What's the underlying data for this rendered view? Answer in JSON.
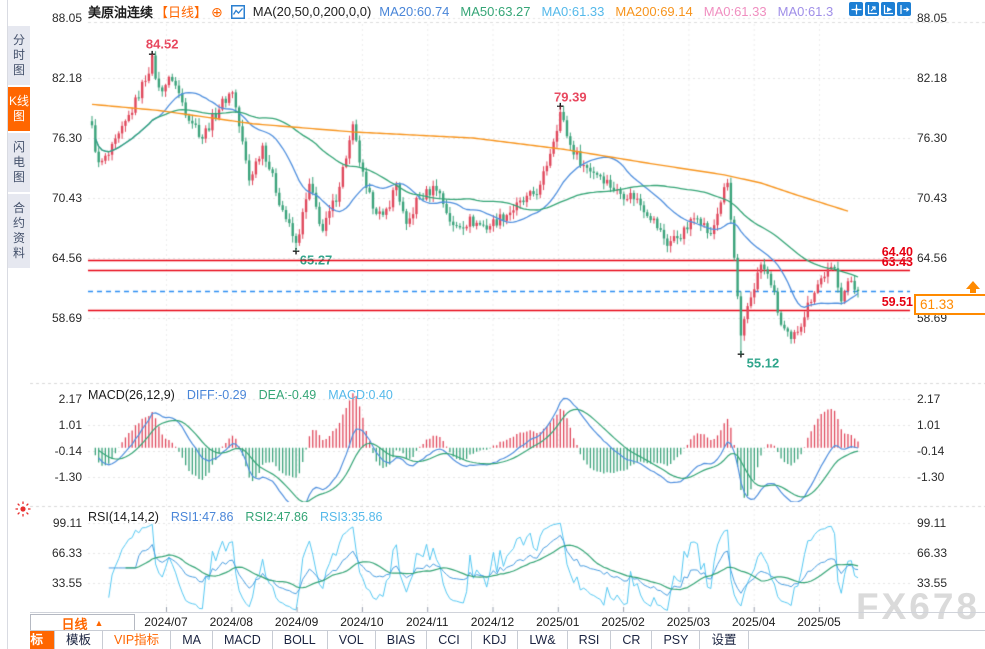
{
  "app": {
    "watermark": "FX678",
    "add_icon_glyph": "⊕",
    "cross_glyph": "+"
  },
  "sidebar": {
    "tabs": [
      {
        "label": "分时图",
        "active": false
      },
      {
        "label": "K线图",
        "active": true
      },
      {
        "label": "闪电图",
        "active": false
      },
      {
        "label": "合约资料",
        "active": false
      }
    ]
  },
  "header": {
    "symbol": "美原油连续",
    "period_tag": "【日线】",
    "ma_params": "MA(20,50,0,200,0,0)",
    "ma_values": [
      {
        "label": "MA20:60.74",
        "color": "#4a86d8"
      },
      {
        "label": "MA50:63.27",
        "color": "#35a576"
      },
      {
        "label": "MA0:61.33",
        "color": "#55b9ea"
      },
      {
        "label": "MA200:69.14",
        "color": "#f7941d"
      },
      {
        "label": "MA0:61.33",
        "color": "#f08fc0"
      },
      {
        "label": "MA0:61.3",
        "color": "#a08fe8"
      }
    ],
    "corner_icons": [
      "crosshair-icon",
      "scale-up-icon",
      "scale-right-icon",
      "page-forward-icon"
    ]
  },
  "chart_data": {
    "type": "candlestick",
    "title": "美原油连续 日线",
    "n_candles": 230,
    "price_keypoints": [
      [
        0,
        77.2
      ],
      [
        2,
        73.6
      ],
      [
        5,
        74.6
      ],
      [
        9,
        77.0
      ],
      [
        13,
        79.8
      ],
      [
        18,
        83.9
      ],
      [
        20,
        81.0
      ],
      [
        24,
        82.2
      ],
      [
        28,
        79.0
      ],
      [
        33,
        76.4
      ],
      [
        38,
        79.3
      ],
      [
        42,
        81.0
      ],
      [
        47,
        72.2
      ],
      [
        51,
        75.6
      ],
      [
        56,
        70.2
      ],
      [
        61,
        65.8
      ],
      [
        65,
        71.6
      ],
      [
        69,
        67.2
      ],
      [
        73,
        70.6
      ],
      [
        78,
        77.2
      ],
      [
        82,
        71.0
      ],
      [
        87,
        68.3
      ],
      [
        91,
        71.8
      ],
      [
        94,
        67.4
      ],
      [
        97,
        70.1
      ],
      [
        103,
        71.6
      ],
      [
        108,
        67.5
      ],
      [
        113,
        68.2
      ],
      [
        118,
        67.6
      ],
      [
        124,
        68.9
      ],
      [
        130,
        70.3
      ],
      [
        134,
        71.4
      ],
      [
        137,
        75.0
      ],
      [
        140,
        78.8
      ],
      [
        143,
        75.6
      ],
      [
        147,
        73.6
      ],
      [
        152,
        72.7
      ],
      [
        157,
        71.0
      ],
      [
        162,
        70.6
      ],
      [
        167,
        68.7
      ],
      [
        172,
        66.0
      ],
      [
        177,
        67.1
      ],
      [
        181,
        68.9
      ],
      [
        185,
        66.6
      ],
      [
        188,
        70.2
      ],
      [
        190,
        71.9
      ],
      [
        192,
        64.5
      ],
      [
        194,
        56.5
      ],
      [
        196,
        59.8
      ],
      [
        200,
        63.9
      ],
      [
        203,
        62.2
      ],
      [
        206,
        58.0
      ],
      [
        209,
        56.3
      ],
      [
        212,
        58.3
      ],
      [
        216,
        61.5
      ],
      [
        219,
        63.0
      ],
      [
        222,
        63.4
      ],
      [
        224,
        60.8
      ],
      [
        227,
        62.4
      ],
      [
        229,
        61.3
      ]
    ],
    "ma200_keypoints": [
      [
        0,
        79.6
      ],
      [
        20,
        79.0
      ],
      [
        48,
        77.7
      ],
      [
        78,
        76.9
      ],
      [
        114,
        76.3
      ],
      [
        141,
        75.2
      ],
      [
        167,
        73.8
      ],
      [
        189,
        72.7
      ],
      [
        200,
        71.9
      ],
      [
        210,
        70.8
      ],
      [
        226,
        69.15
      ]
    ],
    "forced_extremes": {
      "18": {
        "high": 84.52
      },
      "61": {
        "low": 65.27
      },
      "140": {
        "high": 79.39
      },
      "194": {
        "low": 55.12
      }
    },
    "main_axis": {
      "labels": [
        "88.05",
        "82.18",
        "76.30",
        "70.43",
        "64.56",
        "58.69"
      ],
      "values": [
        88.05,
        82.18,
        76.3,
        70.43,
        64.56,
        58.69
      ]
    },
    "hlines": {
      "red": [
        64.4,
        63.43,
        59.51
      ],
      "current": 61.33
    },
    "annotations": {
      "h1": {
        "text": "84.52",
        "i": 18,
        "price": 84.52
      },
      "l1": {
        "text": "65.27",
        "i": 61,
        "price": 65.27
      },
      "h2": {
        "text": "79.39",
        "i": 140,
        "price": 79.39
      },
      "l2": {
        "text": "55.12",
        "i": 194,
        "price": 55.12
      }
    },
    "right_labels": {
      "r1": "64.40",
      "r2": "63.43",
      "r3": "59.51",
      "current": "61.33"
    },
    "macd": {
      "title": "MACD(26,12,9)",
      "diff_label": "DIFF:-0.29",
      "dea_label": "DEA:-0.49",
      "macd_label": "MACD:0.40",
      "axis_labels": [
        "2.17",
        "1.01",
        "-0.14",
        "-1.30"
      ],
      "axis_values": [
        2.17,
        1.01,
        -0.14,
        -1.3
      ]
    },
    "rsi": {
      "title": "RSI(14,14,2)",
      "rsi1_label": "RSI1:47.86",
      "rsi2_label": "RSI2:47.86",
      "rsi3_label": "RSI3:35.86",
      "axis_labels": [
        "99.11",
        "66.33",
        "33.55"
      ],
      "axis_values": [
        99.11,
        66.33,
        33.55
      ]
    },
    "months": [
      "2024/07",
      "2024/08",
      "2024/09",
      "2024/10",
      "2024/11",
      "2024/12",
      "2025/01",
      "2025/02",
      "2025/03",
      "2025/04",
      "2025/05"
    ],
    "colors": {
      "up": "#e0485c",
      "down": "#3ba37b",
      "ma20": "#4f8fde",
      "ma50": "#35a576",
      "ma200": "#f7941d",
      "redline": "#e60012",
      "bluedash": "#2a8df2",
      "grid": "#e4e4e4",
      "rsi1": "#4a9ee0",
      "rsi3": "#55c8f2"
    }
  },
  "bottom": {
    "period_button": "日线",
    "period_arrow": "▲",
    "menu": [
      {
        "label": "指标",
        "style": "active"
      },
      {
        "label": "模板",
        "style": ""
      },
      {
        "label": "VIP指标",
        "style": "vip"
      },
      {
        "label": "MA",
        "style": ""
      },
      {
        "label": "MACD",
        "style": ""
      },
      {
        "label": "BOLL",
        "style": ""
      },
      {
        "label": "VOL",
        "style": ""
      },
      {
        "label": "BIAS",
        "style": ""
      },
      {
        "label": "CCI",
        "style": ""
      },
      {
        "label": "KDJ",
        "style": ""
      },
      {
        "label": "LW&",
        "style": ""
      },
      {
        "label": "RSI",
        "style": ""
      },
      {
        "label": "CR",
        "style": ""
      },
      {
        "label": "PSY",
        "style": ""
      },
      {
        "label": "设置",
        "style": ""
      }
    ]
  }
}
